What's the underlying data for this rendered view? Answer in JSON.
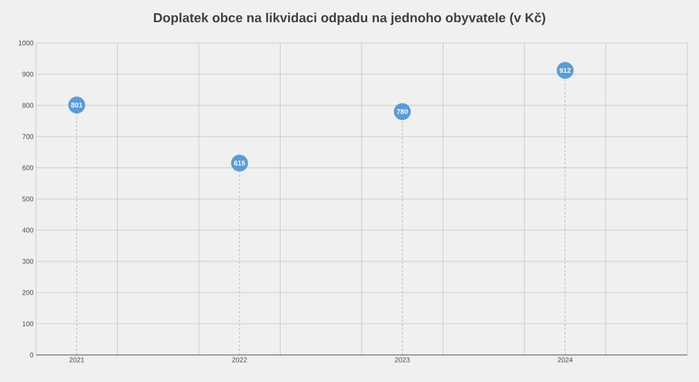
{
  "chart_data": {
    "type": "lollipop",
    "title": "Doplatek obce na likvidaci odpadu na jednoho obyvatele (v Kč)",
    "categories": [
      "2021",
      "2022",
      "2023",
      "2024"
    ],
    "values": [
      801,
      615,
      780,
      912
    ],
    "color": "#5b9bd5",
    "ylim": [
      0,
      1000
    ],
    "yticks": [
      0,
      100,
      200,
      300,
      400,
      500,
      600,
      700,
      800,
      900,
      1000
    ],
    "grid": true,
    "data_labels": true,
    "marker": "circle",
    "line_style": "dashed"
  }
}
